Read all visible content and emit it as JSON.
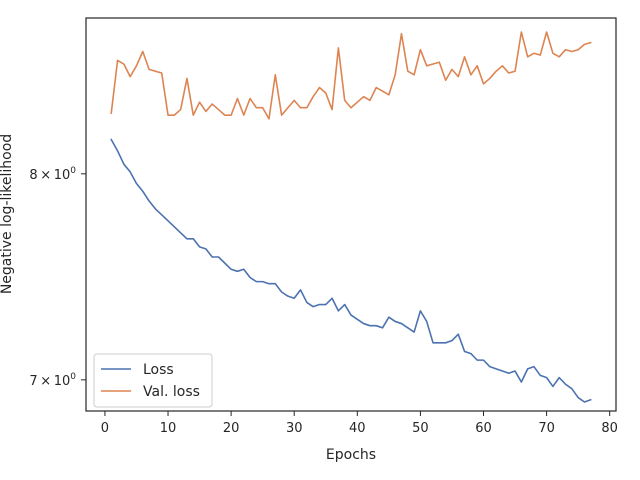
{
  "chart_data": {
    "type": "line",
    "title": "",
    "xlabel": "Epochs",
    "ylabel": "Negative log-likelihood",
    "yscale": "log",
    "xlim": [
      -3,
      81
    ],
    "ylim": [
      6.86,
      8.85
    ],
    "xticks": [
      0,
      10,
      20,
      30,
      40,
      50,
      60,
      70,
      80
    ],
    "yticks": [
      7,
      8
    ],
    "ytick_labels": [
      {
        "base": "7",
        "times": "×",
        "ten": "10",
        "exp": "0"
      },
      {
        "base": "8",
        "times": "×",
        "ten": "10",
        "exp": "0"
      }
    ],
    "grid": false,
    "legend_position": "lower-left",
    "series": [
      {
        "name": "Loss",
        "color": "#4c72b0",
        "x": [
          1,
          2,
          3,
          4,
          5,
          6,
          7,
          8,
          9,
          10,
          11,
          12,
          13,
          14,
          15,
          16,
          17,
          18,
          19,
          20,
          21,
          22,
          23,
          24,
          25,
          26,
          27,
          28,
          29,
          30,
          31,
          32,
          33,
          34,
          35,
          36,
          37,
          38,
          39,
          40,
          41,
          42,
          43,
          44,
          45,
          46,
          47,
          48,
          49,
          50,
          51,
          52,
          53,
          54,
          55,
          56,
          57,
          58,
          59,
          60,
          61,
          62,
          63,
          64,
          65,
          66,
          67,
          68,
          69,
          70,
          71,
          72,
          73,
          74,
          75,
          76,
          77
        ],
        "values": [
          8.18,
          8.12,
          8.05,
          8.01,
          7.95,
          7.91,
          7.86,
          7.82,
          7.79,
          7.76,
          7.73,
          7.7,
          7.67,
          7.67,
          7.63,
          7.62,
          7.58,
          7.58,
          7.55,
          7.52,
          7.51,
          7.52,
          7.48,
          7.46,
          7.46,
          7.45,
          7.45,
          7.41,
          7.39,
          7.38,
          7.42,
          7.36,
          7.34,
          7.35,
          7.35,
          7.38,
          7.32,
          7.35,
          7.3,
          7.28,
          7.26,
          7.25,
          7.25,
          7.24,
          7.29,
          7.27,
          7.26,
          7.24,
          7.22,
          7.32,
          7.27,
          7.17,
          7.17,
          7.17,
          7.18,
          7.21,
          7.13,
          7.12,
          7.09,
          7.09,
          7.06,
          7.05,
          7.04,
          7.03,
          7.04,
          6.99,
          7.05,
          7.06,
          7.02,
          7.01,
          6.97,
          7.01,
          6.98,
          6.96,
          6.92,
          6.9,
          6.91
        ]
      },
      {
        "name": "Val. loss",
        "color": "#dd8452",
        "x": [
          1,
          2,
          3,
          4,
          5,
          6,
          7,
          8,
          9,
          10,
          11,
          12,
          13,
          14,
          15,
          16,
          17,
          18,
          19,
          20,
          21,
          22,
          23,
          24,
          25,
          26,
          27,
          28,
          29,
          30,
          31,
          32,
          33,
          34,
          35,
          36,
          37,
          38,
          39,
          40,
          41,
          42,
          43,
          44,
          45,
          46,
          47,
          48,
          49,
          50,
          51,
          52,
          53,
          54,
          55,
          56,
          57,
          58,
          59,
          60,
          61,
          62,
          63,
          64,
          65,
          66,
          67,
          68,
          69,
          70,
          71,
          72,
          73,
          74,
          75,
          76,
          77
        ],
        "values": [
          8.32,
          8.61,
          8.59,
          8.52,
          8.58,
          8.66,
          8.56,
          8.55,
          8.54,
          8.31,
          8.31,
          8.34,
          8.51,
          8.31,
          8.38,
          8.33,
          8.37,
          8.34,
          8.31,
          8.31,
          8.4,
          8.31,
          8.4,
          8.35,
          8.35,
          8.29,
          8.53,
          8.31,
          8.35,
          8.39,
          8.35,
          8.35,
          8.41,
          8.46,
          8.43,
          8.34,
          8.68,
          8.39,
          8.35,
          8.38,
          8.41,
          8.39,
          8.46,
          8.44,
          8.42,
          8.53,
          8.76,
          8.55,
          8.53,
          8.67,
          8.58,
          8.59,
          8.6,
          8.5,
          8.56,
          8.52,
          8.63,
          8.53,
          8.58,
          8.48,
          8.51,
          8.55,
          8.58,
          8.54,
          8.55,
          8.77,
          8.63,
          8.65,
          8.64,
          8.77,
          8.65,
          8.63,
          8.67,
          8.66,
          8.67,
          8.7,
          8.71
        ]
      }
    ]
  }
}
